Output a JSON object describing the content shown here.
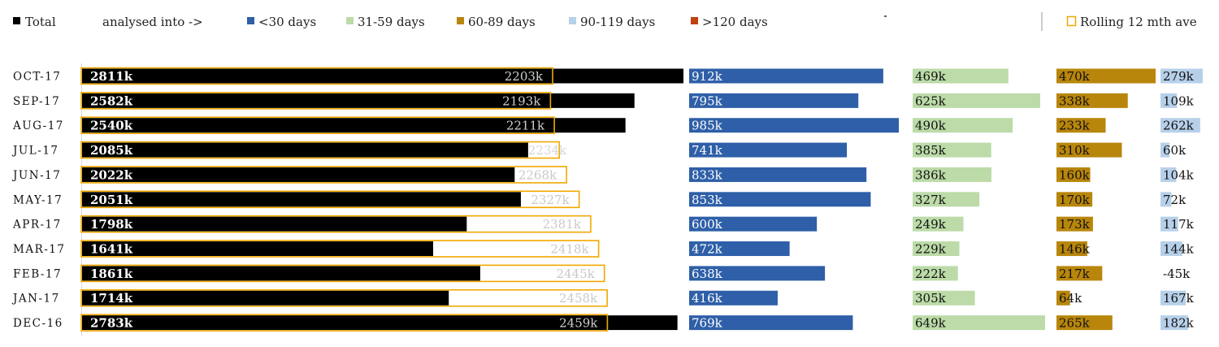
{
  "chart_data": {
    "type": "bar",
    "orientation": "horizontal",
    "legend_position": "top",
    "grid": false,
    "categories": [
      "OCT-17",
      "SEP-17",
      "AUG-17",
      "JUL-17",
      "JUN-17",
      "MAY-17",
      "APR-17",
      "MAR-17",
      "FEB-17",
      "JAN-17",
      "DEC-16"
    ],
    "legend": [
      {
        "key": "total",
        "label": "Total",
        "color": "#000000"
      },
      {
        "key": "analysed",
        "label": "analysed into ->",
        "color": ""
      },
      {
        "key": "lt30",
        "label": "<30 days",
        "color": "#2e5fa8"
      },
      {
        "key": "d31_59",
        "label": "31-59 days",
        "color": "#bcdba8"
      },
      {
        "key": "d60_89",
        "label": "60-89 days",
        "color": "#b8860b"
      },
      {
        "key": "d90_119",
        "label": "90-119 days",
        "color": "#b7d0ea"
      },
      {
        "key": "gt120",
        "label": ">120 days",
        "color": "#c0420f"
      },
      {
        "key": "rolling",
        "label": "Rolling 12 mth ave",
        "color": "#f0a800"
      }
    ],
    "series": {
      "total": {
        "values": [
          2811,
          2582,
          2540,
          2085,
          2022,
          2051,
          1798,
          1641,
          1861,
          1714,
          2783
        ],
        "labels": [
          "2811k",
          "2582k",
          "2540k",
          "2085k",
          "2022k",
          "2051k",
          "1798k",
          "1641k",
          "1861k",
          "1714k",
          "2783k"
        ]
      },
      "rolling": {
        "values": [
          2203,
          2193,
          2211,
          2234,
          2268,
          2327,
          2381,
          2418,
          2445,
          2458,
          2459
        ],
        "labels": [
          "2203k",
          "2193k",
          "2211k",
          "2234k",
          "2268k",
          "2327k",
          "2381k",
          "2418k",
          "2445k",
          "2458k",
          "2459k"
        ]
      },
      "lt30": {
        "values": [
          912,
          795,
          985,
          741,
          833,
          853,
          600,
          472,
          638,
          416,
          769
        ],
        "labels": [
          "912k",
          "795k",
          "985k",
          "741k",
          "833k",
          "853k",
          "600k",
          "472k",
          "638k",
          "416k",
          "769k"
        ]
      },
      "d31_59": {
        "values": [
          469,
          625,
          490,
          385,
          386,
          327,
          249,
          229,
          222,
          305,
          649
        ],
        "labels": [
          "469k",
          "625k",
          "490k",
          "385k",
          "386k",
          "327k",
          "249k",
          "229k",
          "222k",
          "305k",
          "649k"
        ]
      },
      "d60_89": {
        "values": [
          470,
          338,
          233,
          310,
          160,
          170,
          173,
          146,
          217,
          64,
          265
        ],
        "labels": [
          "470k",
          "338k",
          "233k",
          "310k",
          "160k",
          "170k",
          "173k",
          "146k",
          "217k",
          "64k",
          "265k"
        ]
      },
      "d90_119": {
        "values": [
          279,
          109,
          262,
          60,
          104,
          72,
          117,
          144,
          -45,
          167,
          182
        ],
        "labels": [
          "279k",
          "109k",
          "262k",
          "60k",
          "104k",
          "72k",
          "117k",
          "144k",
          "-45k",
          "167k",
          "182k"
        ]
      }
    }
  }
}
